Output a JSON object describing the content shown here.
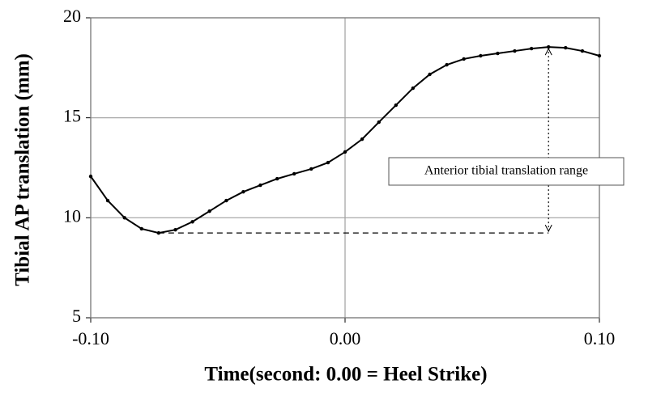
{
  "chart_data": {
    "type": "line",
    "x_label": "Time(second: 0.00 = Heel Strike)",
    "y_label": "Tibial AP translation (mm)",
    "annotation": "Anterior tibial translation range",
    "x": [
      -0.1,
      -0.0933,
      -0.0867,
      -0.08,
      -0.0733,
      -0.0667,
      -0.06,
      -0.0533,
      -0.0467,
      -0.04,
      -0.0333,
      -0.0267,
      -0.02,
      -0.0133,
      -0.0067,
      0,
      0.0067,
      0.0133,
      0.02,
      0.0267,
      0.0333,
      0.04,
      0.0467,
      0.0533,
      0.06,
      0.0667,
      0.0733,
      0.08,
      0.0867,
      0.0933,
      0.1
    ],
    "values": [
      12.07,
      10.86,
      10.0,
      9.45,
      9.24,
      9.4,
      9.8,
      10.33,
      10.86,
      11.3,
      11.63,
      11.95,
      12.2,
      12.44,
      12.76,
      13.29,
      13.93,
      14.78,
      15.63,
      16.48,
      17.17,
      17.65,
      17.94,
      18.1,
      18.22,
      18.34,
      18.46,
      18.54,
      18.5,
      18.34,
      18.1
    ],
    "color": "#000000",
    "xlim": [
      -0.1,
      0.1
    ],
    "xticks": [
      {
        "value": -0.1,
        "label": "-0.10"
      },
      {
        "value": 0,
        "label": "0.00"
      },
      {
        "value": 0.1,
        "label": "0.10"
      }
    ],
    "ylim": [
      5,
      20
    ],
    "yticks": [
      5,
      10,
      15,
      20
    ],
    "grid": true
  }
}
